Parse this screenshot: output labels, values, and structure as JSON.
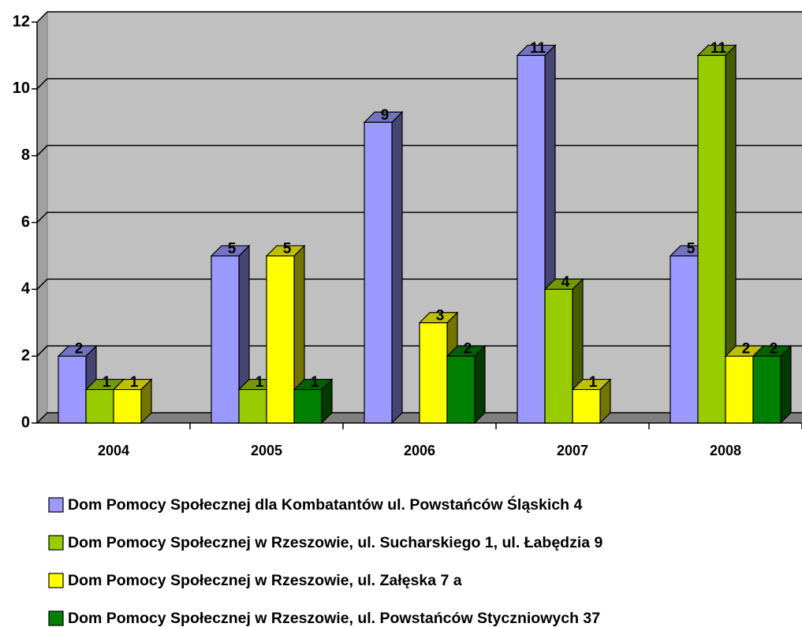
{
  "chart_data": {
    "type": "bar3d",
    "categories": [
      "2004",
      "2005",
      "2006",
      "2007",
      "2008"
    ],
    "series": [
      {
        "name": "Dom Pomocy Społecznej dla Kombatantów ul. Powstańców Śląskich 4",
        "color": "#9999ff",
        "values": [
          2,
          5,
          9,
          11,
          5
        ]
      },
      {
        "name": "Dom Pomocy Społecznej w Rzeszowie, ul. Sucharskiego 1, ul. Łabędzia 9",
        "color": "#99cc00",
        "values": [
          1,
          1,
          null,
          4,
          11
        ]
      },
      {
        "name": "Dom Pomocy Społecznej w Rzeszowie, ul. Załęska 7 a",
        "color": "#ffff00",
        "values": [
          1,
          5,
          3,
          1,
          2
        ]
      },
      {
        "name": "Dom Pomocy Społecznej w Rzeszowie, ul. Powstańców Styczniowych 37",
        "color": "#008000",
        "values": [
          null,
          1,
          2,
          null,
          2
        ]
      }
    ],
    "ylim": [
      0,
      12
    ],
    "yticks": [
      0,
      2,
      4,
      6,
      8,
      10,
      12
    ],
    "grid": true,
    "legend": "bottom"
  }
}
